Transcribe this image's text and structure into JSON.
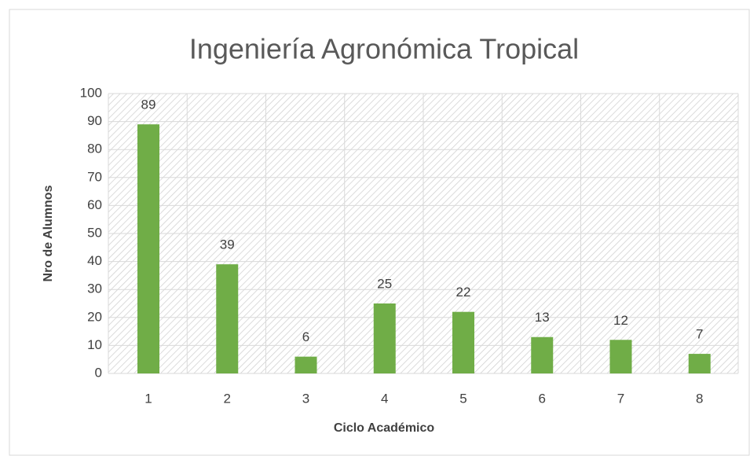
{
  "chart_data": {
    "type": "bar",
    "title": "Ingeniería Agronómica Tropical",
    "x_label": "Ciclo Académico",
    "y_label": "Nro de Alumnos",
    "categories": [
      "1",
      "2",
      "3",
      "4",
      "5",
      "6",
      "7",
      "8"
    ],
    "values": [
      89,
      39,
      6,
      25,
      22,
      13,
      12,
      7
    ],
    "color": "#70ad47",
    "ylim": [
      0,
      100
    ],
    "yticks": [
      0,
      10,
      20,
      30,
      40,
      50,
      60,
      70,
      80,
      90,
      100
    ],
    "grid": true
  }
}
